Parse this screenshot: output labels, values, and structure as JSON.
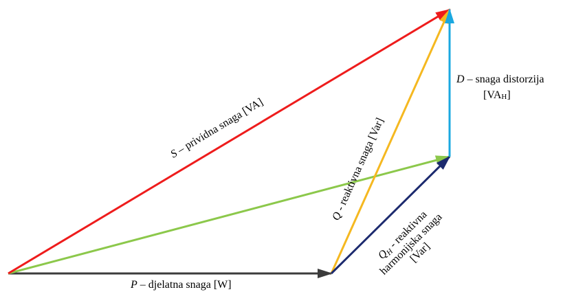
{
  "vectors": [
    {
      "id": "P",
      "color": "#3b3b3b"
    },
    {
      "id": "S",
      "color": "#ee1c1c"
    },
    {
      "id": "green",
      "color": "#8cc84b"
    },
    {
      "id": "Q",
      "color": "#f5b820"
    },
    {
      "id": "QH",
      "color": "#1c2a6e"
    },
    {
      "id": "D",
      "color": "#1aa8e0"
    }
  ],
  "labels": {
    "P": {
      "symbol": "P",
      "text": " – djelatna snaga [W]"
    },
    "S": {
      "symbol": "S",
      "text": " – prividna snaga [VA]"
    },
    "Q": {
      "symbol": "Q",
      "text": " - reaktivna snaga [Var]"
    },
    "QH": {
      "symbol": "Q",
      "subscript": "H",
      "line1": " - reaktivna",
      "line2": "harmonijska snaga",
      "line3": "[Var]"
    },
    "D": {
      "symbol": "D",
      "line1": " – snaga distorzija",
      "line2_main": "[VA",
      "line2_sub": "H",
      "line2_end": "]"
    }
  }
}
